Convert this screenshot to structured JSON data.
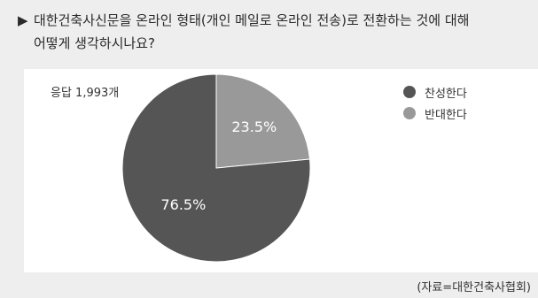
{
  "question": {
    "arrow": "▶",
    "line1": "대한건축사신문을 온라인 형태(개인 메일로 온라인 전송)로 전환하는 것에 대해",
    "line2": "어떻게 생각하시나요?"
  },
  "respondents_label": "응답 1,993개",
  "source": "(자료=대한건축사협회)",
  "chart_data": {
    "type": "pie",
    "title": "",
    "slices": [
      {
        "label": "찬성한다",
        "value": 76.5,
        "value_label": "76.5%",
        "color": "#555555"
      },
      {
        "label": "반대한다",
        "value": 23.5,
        "value_label": "23.5%",
        "color": "#999999"
      }
    ],
    "legend_position": "top-right"
  }
}
